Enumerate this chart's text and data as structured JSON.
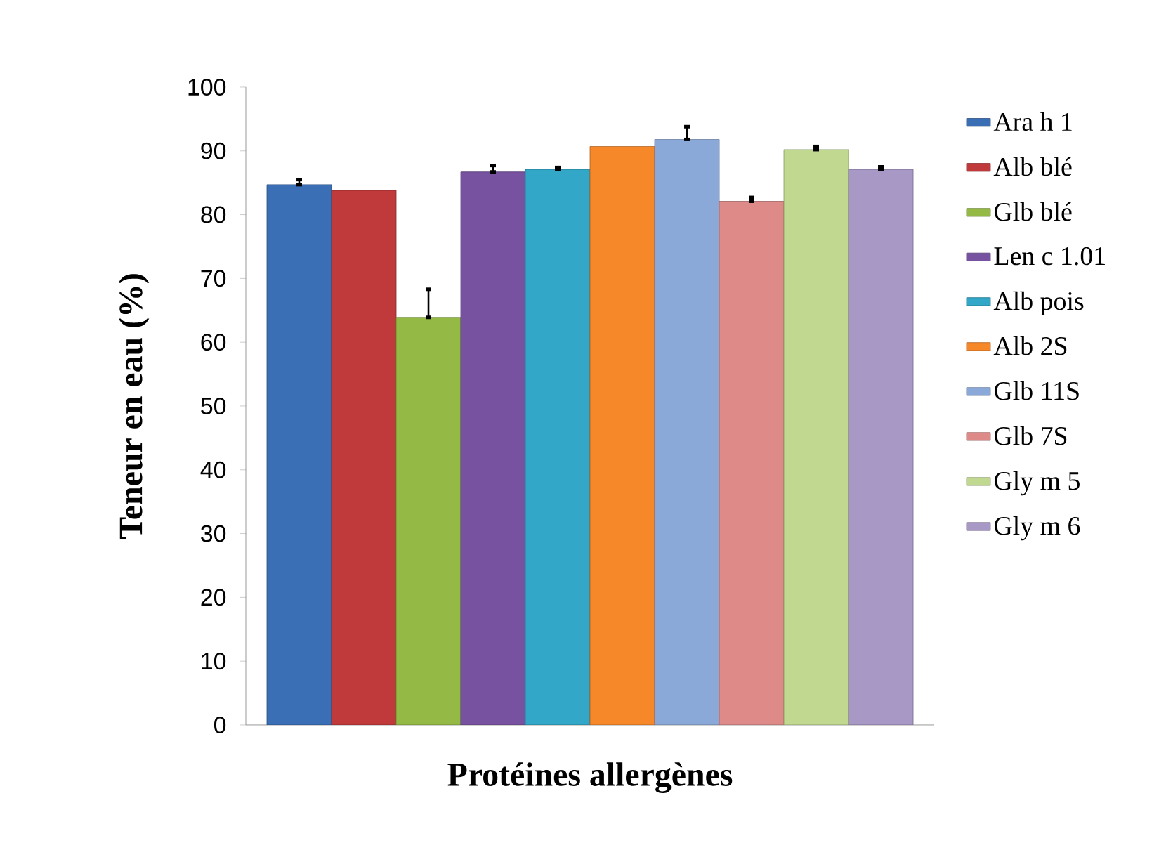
{
  "chart_data": {
    "type": "bar",
    "xlabel": "Protéines allergènes",
    "ylabel": "Teneur en eau (%)",
    "categories": [
      null
    ],
    "ylim": [
      0,
      100
    ],
    "yticks": [
      0,
      10,
      20,
      30,
      40,
      50,
      60,
      70,
      80,
      90,
      100
    ],
    "legend": "right",
    "grid": false,
    "series": [
      {
        "name": "Ara h 1",
        "color": "#3a6fb5",
        "values": [
          84.7
        ],
        "errors": [
          [
            84.7,
            85.5
          ]
        ]
      },
      {
        "name": "Alb blé",
        "color": "#c0393b",
        "values": [
          83.8
        ],
        "errors": [
          null
        ]
      },
      {
        "name": "Glb blé",
        "color": "#94b944",
        "values": [
          63.9
        ],
        "errors": [
          [
            63.9,
            68.3
          ]
        ]
      },
      {
        "name": "Len c 1.01",
        "color": "#7752a0",
        "values": [
          86.7
        ],
        "errors": [
          [
            86.7,
            87.7
          ]
        ]
      },
      {
        "name": "Alb pois",
        "color": "#32a7c7",
        "values": [
          87.1
        ],
        "errors": [
          [
            87.1,
            87.4
          ]
        ]
      },
      {
        "name": "Alb 2S",
        "color": "#f7882a",
        "values": [
          90.7
        ],
        "errors": [
          null
        ]
      },
      {
        "name": "Glb 11S",
        "color": "#8aa9d8",
        "values": [
          91.8
        ],
        "errors": [
          [
            91.8,
            93.8
          ]
        ]
      },
      {
        "name": "Glb 7S",
        "color": "#de8a89",
        "values": [
          82.1
        ],
        "errors": [
          [
            82.1,
            82.7
          ]
        ]
      },
      {
        "name": "Gly m 5",
        "color": "#c0d890",
        "values": [
          90.2
        ],
        "errors": [
          [
            90.2,
            90.7
          ]
        ]
      },
      {
        "name": "Gly m 6",
        "color": "#a898c6",
        "values": [
          87.1
        ],
        "errors": [
          [
            87.1,
            87.5
          ]
        ]
      }
    ]
  }
}
